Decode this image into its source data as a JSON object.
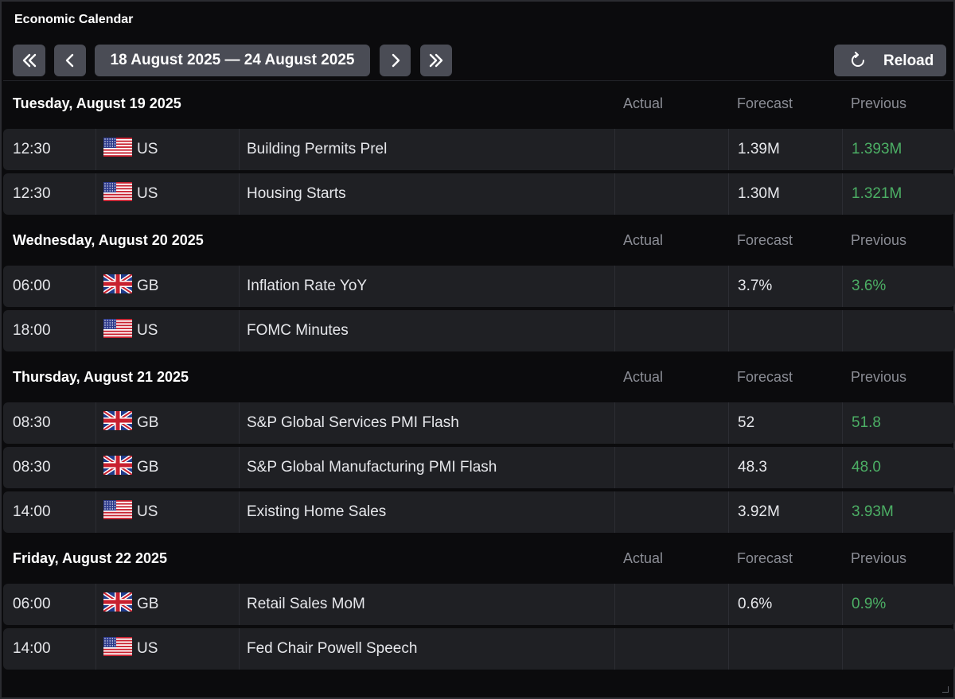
{
  "app": {
    "title": "Economic Calendar"
  },
  "toolbar": {
    "first_icon": "double-chevron-left-icon",
    "prev_icon": "chevron-left-icon",
    "range_label": "18 August 2025 — 24 August 2025",
    "next_icon": "chevron-right-icon",
    "last_icon": "double-chevron-right-icon",
    "reload_label": "Reload",
    "reload_icon": "refresh-icon"
  },
  "columns": {
    "actual": "Actual",
    "forecast": "Forecast",
    "previous": "Previous"
  },
  "colors": {
    "previous_value": "#4caf65",
    "button_bg": "#4a4c55",
    "row_bg": "#1f2024",
    "page_bg": "#0b0b0d"
  },
  "days": [
    {
      "label": "Tuesday, August 19 2025",
      "events": [
        {
          "time": "12:30",
          "country": "US",
          "flag": "us-flag-icon",
          "event": "Building Permits Prel",
          "actual": "",
          "forecast": "1.39M",
          "previous": "1.393M"
        },
        {
          "time": "12:30",
          "country": "US",
          "flag": "us-flag-icon",
          "event": "Housing Starts",
          "actual": "",
          "forecast": "1.30M",
          "previous": "1.321M"
        }
      ]
    },
    {
      "label": "Wednesday, August 20 2025",
      "events": [
        {
          "time": "06:00",
          "country": "GB",
          "flag": "gb-flag-icon",
          "event": "Inflation Rate YoY",
          "actual": "",
          "forecast": "3.7%",
          "previous": "3.6%"
        },
        {
          "time": "18:00",
          "country": "US",
          "flag": "us-flag-icon",
          "event": "FOMC Minutes",
          "actual": "",
          "forecast": "",
          "previous": ""
        }
      ]
    },
    {
      "label": "Thursday, August 21 2025",
      "events": [
        {
          "time": "08:30",
          "country": "GB",
          "flag": "gb-flag-icon",
          "event": "S&P Global Services PMI Flash",
          "actual": "",
          "forecast": "52",
          "previous": "51.8"
        },
        {
          "time": "08:30",
          "country": "GB",
          "flag": "gb-flag-icon",
          "event": "S&P Global Manufacturing PMI Flash",
          "actual": "",
          "forecast": "48.3",
          "previous": "48.0"
        },
        {
          "time": "14:00",
          "country": "US",
          "flag": "us-flag-icon",
          "event": "Existing Home Sales",
          "actual": "",
          "forecast": "3.92M",
          "previous": "3.93M"
        }
      ]
    },
    {
      "label": "Friday, August 22 2025",
      "events": [
        {
          "time": "06:00",
          "country": "GB",
          "flag": "gb-flag-icon",
          "event": "Retail Sales MoM",
          "actual": "",
          "forecast": "0.6%",
          "previous": "0.9%"
        },
        {
          "time": "14:00",
          "country": "US",
          "flag": "us-flag-icon",
          "event": "Fed Chair Powell Speech",
          "actual": "",
          "forecast": "",
          "previous": ""
        }
      ]
    }
  ]
}
